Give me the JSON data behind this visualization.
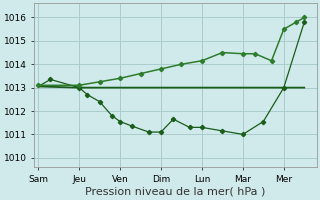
{
  "background_color": "#d0eaeb",
  "grid_color": "#aacccc",
  "line_dark": "#1a5c1a",
  "line_mid": "#2d7d2d",
  "x_labels": [
    "Sam",
    "Jeu",
    "Ven",
    "Dim",
    "Lun",
    "Mar",
    "Mer"
  ],
  "x_positions": [
    0,
    1,
    2,
    3,
    4,
    5,
    6
  ],
  "line_flat_x": [
    0,
    1,
    2,
    3,
    4,
    5,
    5.5,
    6.5
  ],
  "line_flat_y": [
    1013.05,
    1013.0,
    1013.0,
    1013.0,
    1013.0,
    1013.0,
    1013.0,
    1013.0
  ],
  "line_dip_x": [
    0,
    0.3,
    1,
    1.2,
    1.5,
    1.8,
    2,
    2.3,
    2.7,
    3,
    3.3,
    3.7,
    4,
    4.5,
    5,
    5.5,
    6,
    6.5
  ],
  "line_dip_y": [
    1013.05,
    1013.35,
    1013.0,
    1012.7,
    1012.4,
    1011.8,
    1011.55,
    1011.35,
    1011.1,
    1011.1,
    1011.65,
    1011.3,
    1011.3,
    1011.15,
    1011.0,
    1011.55,
    1013.0,
    1015.8
  ],
  "line_rise_x": [
    0,
    1,
    1.5,
    2,
    2.5,
    3,
    3.5,
    4,
    4.5,
    5,
    5.3,
    5.7,
    6,
    6.3,
    6.5
  ],
  "line_rise_y": [
    1013.1,
    1013.1,
    1013.25,
    1013.4,
    1013.6,
    1013.8,
    1014.0,
    1014.15,
    1014.5,
    1014.45,
    1014.45,
    1014.15,
    1015.5,
    1015.8,
    1016.0
  ],
  "ylim": [
    1009.6,
    1016.6
  ],
  "yticks": [
    1010,
    1011,
    1012,
    1013,
    1014,
    1015,
    1016
  ],
  "xlim": [
    -0.1,
    6.8
  ],
  "xlabel": "Pression niveau de la mer( hPa )",
  "xlabel_fontsize": 8
}
